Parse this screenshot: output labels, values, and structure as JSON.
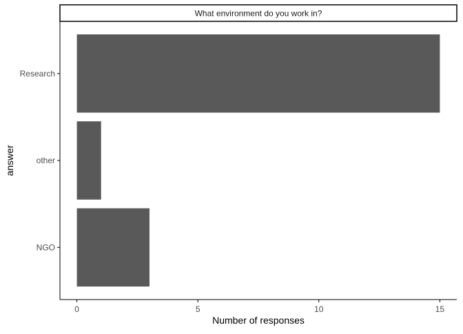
{
  "chart_data": {
    "type": "bar",
    "orientation": "horizontal",
    "facet_title": "What environment do you work in?",
    "categories": [
      "Research",
      "other",
      "NGO"
    ],
    "values": [
      15,
      1,
      3
    ],
    "xlabel": "Number of responses",
    "ylabel": "answer",
    "xlim": [
      -0.7,
      15.7
    ],
    "xticks": [
      0,
      5,
      10,
      15
    ],
    "grid": false,
    "legend": "none",
    "bar_color": "#595959",
    "axis_color": "#000000",
    "tick_label_color": "#4d4d4d"
  }
}
